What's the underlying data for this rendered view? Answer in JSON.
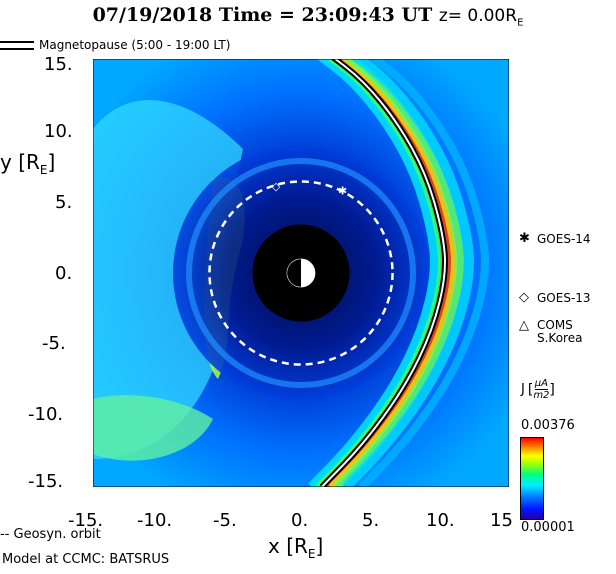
{
  "header": {
    "title_main": "07/19/2018 Time = 23:09:43 UT",
    "title_z": "z= 0.00R",
    "title_z_sub": "E"
  },
  "legend": {
    "magnetopause": "Magnetopause (5:00 - 19:00 LT)"
  },
  "satellites": [
    {
      "symbol": "✱",
      "label": "GOES-14",
      "icon": "asterisk-icon",
      "x": 3.0,
      "y": 5.8
    },
    {
      "symbol": "◇",
      "label": "GOES-13",
      "icon": "diamond-icon",
      "x": -1.8,
      "y": 6.1
    },
    {
      "symbol": "△",
      "label": "COMS",
      "label2": "S.Korea",
      "icon": "triangle-icon"
    }
  ],
  "colorbar": {
    "label": "J",
    "unit_num": "µA",
    "unit_den": "m2",
    "max": "0.00376",
    "min": "0.00001"
  },
  "footer": {
    "geosyn": "-- Geosyn. orbit",
    "model": "Model at CCMC: BATSRUS"
  },
  "chart_data": {
    "type": "heatmap",
    "title": "07/19/2018 Time = 23:09:43 UT z= 0.00RE",
    "xlabel": "x [RE]",
    "ylabel": "y [RE]",
    "xlim": [
      -15,
      15
    ],
    "ylim": [
      -15,
      15
    ],
    "xticks": [
      "-15.",
      "-10.",
      "-5.",
      "0.",
      "5.",
      "10.",
      "15"
    ],
    "yticks": [
      "15.",
      "10.",
      "5.",
      "0.",
      "-5.",
      "-10.",
      "-15."
    ],
    "x_values": [
      -15,
      -10,
      -5,
      0,
      5,
      10,
      15
    ],
    "y_values": [
      15,
      10,
      5,
      0,
      -5,
      -10,
      -15
    ],
    "colorscale_range": [
      1e-05,
      0.00376
    ],
    "geosynchronous_orbit_radius": 6.6,
    "inner_boundary_radius": 3.5,
    "earth_radius": 1.0,
    "magnetopause_subsolar_x": 10.7,
    "magnetopause": [
      [
        1.5,
        -15
      ],
      [
        4.5,
        -12
      ],
      [
        7.5,
        -8
      ],
      [
        9.5,
        -4
      ],
      [
        10.5,
        0
      ],
      [
        10.2,
        3
      ],
      [
        9,
        7
      ],
      [
        7,
        10.5
      ],
      [
        4.5,
        13.5
      ],
      [
        1.8,
        15.5
      ]
    ]
  }
}
